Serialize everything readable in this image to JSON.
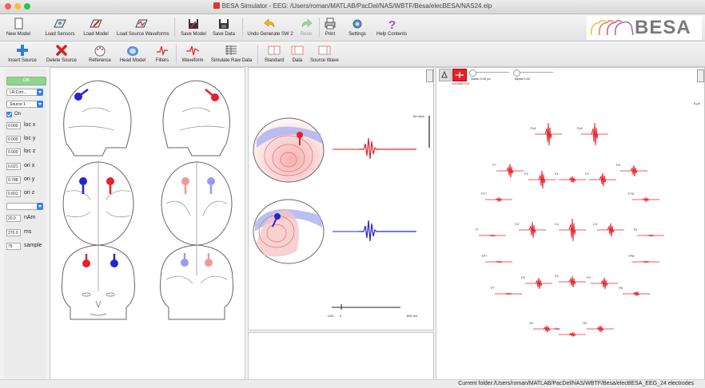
{
  "window": {
    "title": "BESA Simulator - EEG: /Users/roman/MATLAB/PacDel/NAS/WBTF/Besa/elecBESA/NAS24.elp"
  },
  "toolbar1": {
    "new_model": "New Model",
    "load_sensors": "Load Sensors",
    "load_model": "Load Model",
    "load_source_waveforms": "Load Source Waveforms",
    "save_model": "Save Model",
    "save_data": "Save Data",
    "undo": "Undo Generate SW 2",
    "redo": "Redo",
    "print": "Print",
    "settings": "Settings",
    "help": "Help Contents"
  },
  "logo": {
    "text": "BESA"
  },
  "toolbar2": {
    "insert_source": "Insert Source",
    "delete_source": "Delete Source",
    "reference": "Reference",
    "head_model": "Head Model",
    "filters": "Filters",
    "waveform": "Waveform",
    "simulate_raw_data": "Simulate Raw Data",
    "standard": "Standard",
    "data": "Data",
    "source_wave": "Source Wave"
  },
  "controls": {
    "ok_label": "OK",
    "coord_select": "LR Cort...",
    "source_select": "Source 1",
    "on_checkbox": "On",
    "on_checked": true,
    "loc_x": {
      "value": "0.000",
      "label": "loc x"
    },
    "loc_y": {
      "value": "0.000",
      "label": "loc y"
    },
    "loc_z": {
      "value": "0.000",
      "label": "loc z"
    },
    "ori_x": {
      "value": "0.021",
      "label": "ori x"
    },
    "ori_y": {
      "value": "0.788",
      "label": "ori y"
    },
    "ori_z": {
      "value": "0.601",
      "label": "ori z"
    },
    "amp": {
      "value": "20.0",
      "label": "nAm"
    },
    "time_ms": {
      "value": "270.0",
      "label": "ms"
    },
    "sample": {
      "value": "75",
      "label": "sample"
    }
  },
  "waveform_panel": {
    "scale_label": "50 nAm",
    "axis_start": "-100",
    "axis_zero": "0",
    "axis_end": "800 ms"
  },
  "topo_panel": {
    "noise_label": "Noise 0.00 μv",
    "alpha_label": "Alpha 0.00",
    "average_ref": "Average Ref",
    "scale_label": "5 μV"
  },
  "electrodes": [
    {
      "name": "Fp1"
    },
    {
      "name": "Fp2"
    },
    {
      "name": "F7"
    },
    {
      "name": "F3"
    },
    {
      "name": "Fz"
    },
    {
      "name": "F4"
    },
    {
      "name": "F8"
    },
    {
      "name": "FT7"
    },
    {
      "name": "FT8"
    },
    {
      "name": "T7"
    },
    {
      "name": "C3"
    },
    {
      "name": "Cz"
    },
    {
      "name": "C4"
    },
    {
      "name": "T8"
    },
    {
      "name": "TP7"
    },
    {
      "name": "TP8"
    },
    {
      "name": "P7"
    },
    {
      "name": "P3"
    },
    {
      "name": "Pz"
    },
    {
      "name": "P4"
    },
    {
      "name": "P8"
    },
    {
      "name": "O1"
    },
    {
      "name": "Oz"
    },
    {
      "name": "O2"
    }
  ],
  "status": {
    "text": "Current folder:/Users/roman/MATLAB/PacDel/NAS/WBTF/Besa/elecBESA_EEG_24 electrodes"
  },
  "colors": {
    "source_red": "#e8202a",
    "source_blue": "#2424d0",
    "accent_blue": "#3b82e0"
  }
}
